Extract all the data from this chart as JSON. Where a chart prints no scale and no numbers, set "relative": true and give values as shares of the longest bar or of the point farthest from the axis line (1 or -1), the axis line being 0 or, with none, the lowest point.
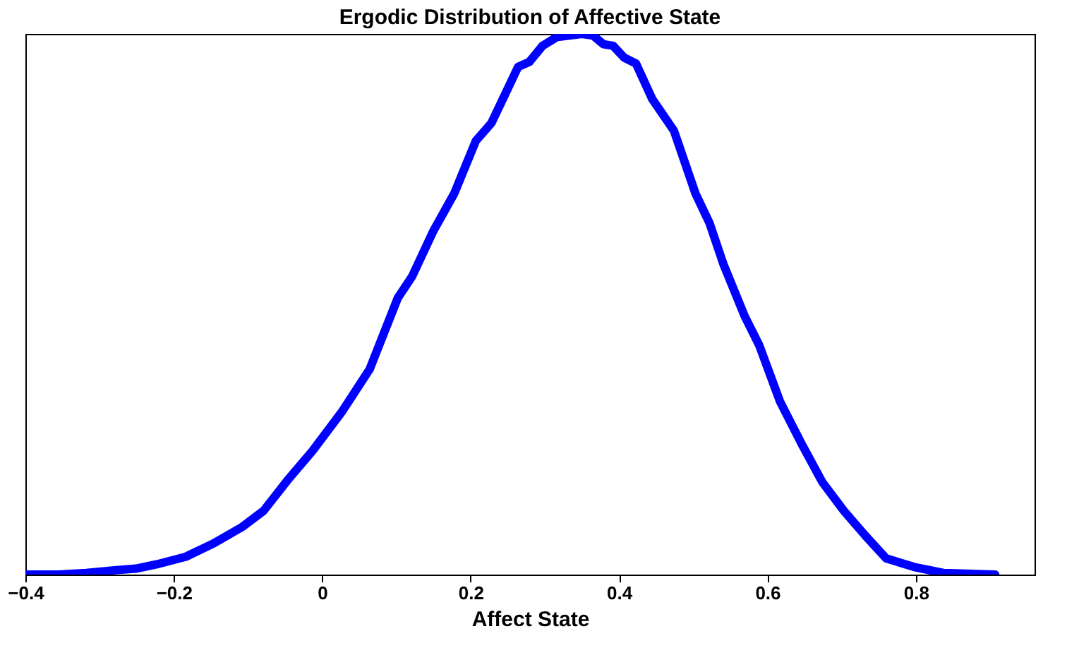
{
  "chart_data": {
    "type": "line",
    "title": "Ergodic Distribution of Affective State",
    "xlabel": "Affect State",
    "relative": true,
    "grid": false,
    "legend": false,
    "marker": "none",
    "line_style": "solid",
    "xlim": [
      -0.4,
      0.96
    ],
    "xticks": [
      -0.4,
      -0.2,
      0,
      0.2,
      0.4,
      0.6,
      0.8
    ],
    "x": [
      -0.4,
      -0.356,
      -0.318,
      -0.28,
      -0.251,
      -0.223,
      -0.184,
      -0.146,
      -0.108,
      -0.079,
      -0.047,
      -0.013,
      0.026,
      0.064,
      0.102,
      0.121,
      0.15,
      0.178,
      0.207,
      0.228,
      0.245,
      0.264,
      0.279,
      0.297,
      0.316,
      0.35,
      0.365,
      0.379,
      0.392,
      0.407,
      0.423,
      0.445,
      0.474,
      0.503,
      0.522,
      0.541,
      0.569,
      0.589,
      0.617,
      0.646,
      0.674,
      0.703,
      0.732,
      0.76,
      0.798,
      0.837,
      0.907
    ],
    "series": [
      {
        "color": "#0000ff",
        "values": [
          0,
          0,
          0.003,
          0.008,
          0.011,
          0.019,
          0.033,
          0.058,
          0.088,
          0.118,
          0.174,
          0.229,
          0.3,
          0.38,
          0.512,
          0.551,
          0.636,
          0.705,
          0.802,
          0.835,
          0.884,
          0.939,
          0.948,
          0.978,
          0.994,
          1.0,
          0.997,
          0.981,
          0.978,
          0.956,
          0.945,
          0.879,
          0.821,
          0.705,
          0.65,
          0.573,
          0.479,
          0.424,
          0.32,
          0.242,
          0.171,
          0.118,
          0.072,
          0.03,
          0.014,
          0.003,
          0
        ]
      }
    ]
  }
}
